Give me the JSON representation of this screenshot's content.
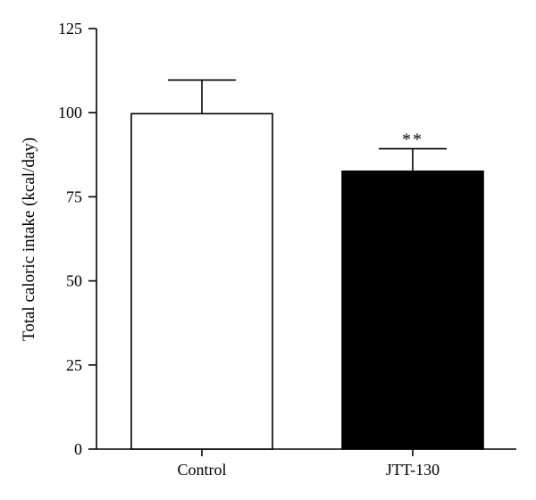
{
  "chart_data": {
    "type": "bar",
    "categories": [
      "Control",
      "JTT-130"
    ],
    "values": [
      99.7,
      82.6
    ],
    "error_upper": [
      109.7,
      89.3
    ],
    "bar_colors": [
      "#ffffff",
      "#000000"
    ],
    "annotations": [
      "",
      "**"
    ],
    "ylabel": "Total caloric intake (kcal/day)",
    "xlabel": "",
    "ylim": [
      0,
      125
    ],
    "yticks": [
      0,
      25,
      50,
      75,
      100,
      125
    ],
    "ytick_labels": [
      "0",
      "25",
      "50",
      "75",
      "100",
      "125"
    ],
    "grid": false,
    "legend": "none"
  }
}
